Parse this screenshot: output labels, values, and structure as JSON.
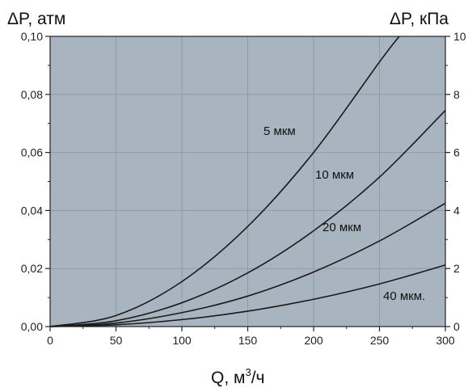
{
  "chart_data": {
    "type": "line",
    "title": "",
    "xlabel": "Q, м",
    "xlabel_sup": "3",
    "xlabel_tail": "/ч",
    "ylabel_left": "ΔP, атм",
    "ylabel_right": "ΔP, кПа",
    "xlim": [
      0,
      300
    ],
    "ylim_left": [
      0,
      0.1
    ],
    "ylim_right": [
      0,
      10
    ],
    "x_ticks": [
      "0",
      "50",
      "100",
      "150",
      "200",
      "250",
      "300"
    ],
    "y_left_ticks": [
      "0,00",
      "0,02",
      "0,04",
      "0,06",
      "0,08",
      "0,10"
    ],
    "y_right_ticks": [
      "0",
      "2",
      "4",
      "6",
      "8",
      "10"
    ],
    "grid": true,
    "plot_background": "#a8b4c0",
    "line_color": "#1a1a1a",
    "series": [
      {
        "name": "5 мкм",
        "x": [
          0,
          50,
          100,
          150,
          200,
          250,
          265
        ],
        "y": [
          0,
          0.0038,
          0.0155,
          0.0345,
          0.06,
          0.0912,
          0.1
        ]
      },
      {
        "name": "10 мкм",
        "x": [
          0,
          50,
          100,
          150,
          200,
          250,
          300
        ],
        "y": [
          0,
          0.002,
          0.0082,
          0.0185,
          0.033,
          0.0515,
          0.0745
        ]
      },
      {
        "name": "20 мкм",
        "x": [
          0,
          50,
          100,
          150,
          200,
          250,
          300
        ],
        "y": [
          0,
          0.0012,
          0.0048,
          0.0105,
          0.0188,
          0.0295,
          0.0425
        ]
      },
      {
        "name": "40 мкм.",
        "x": [
          0,
          50,
          100,
          150,
          200,
          250,
          300
        ],
        "y": [
          0,
          0.0006,
          0.0024,
          0.0053,
          0.0094,
          0.0147,
          0.0212
        ]
      }
    ]
  }
}
